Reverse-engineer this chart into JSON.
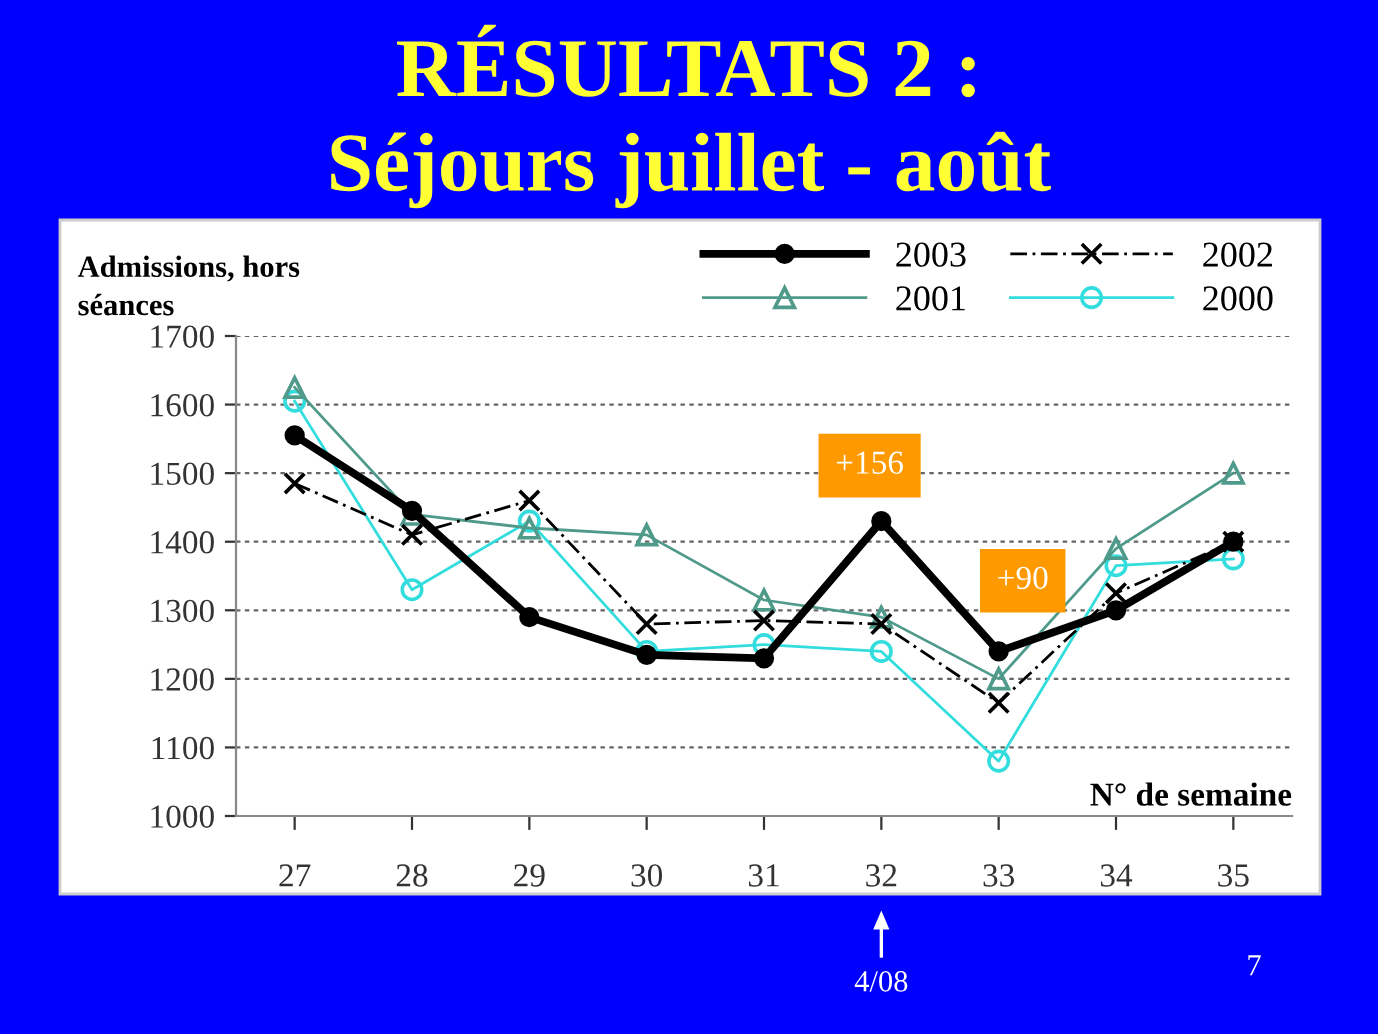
{
  "chart_data": {
    "type": "line",
    "title": "RÉSULTATS 2 :",
    "subtitle": "Séjours juillet - août",
    "xlabel": "N° de semaine",
    "ylabel": "Admissions, hors\nséances",
    "categories": [
      "27",
      "28",
      "29",
      "30",
      "31",
      "32",
      "33",
      "34",
      "35"
    ],
    "series": [
      {
        "name": "2003",
        "color": "#000000",
        "marker": "circle",
        "line_style": "solid",
        "values": [
          1555,
          1445,
          1290,
          1235,
          1230,
          1430,
          1240,
          1300,
          1400
        ]
      },
      {
        "name": "2002",
        "color": "#000000",
        "marker": "cross",
        "line_style": "dashed",
        "values": [
          1485,
          1410,
          1460,
          1280,
          1285,
          1280,
          1165,
          1325,
          1400
        ]
      },
      {
        "name": "2001",
        "color": "#4f9a8a",
        "marker": "triangle",
        "line_style": "solid",
        "values": [
          1625,
          1440,
          1420,
          1410,
          1315,
          1290,
          1200,
          1390,
          1500
        ]
      },
      {
        "name": "2000",
        "color": "#33dddd",
        "marker": "circle",
        "line_style": "solid",
        "values": [
          1605,
          1330,
          1430,
          1240,
          1250,
          1240,
          1080,
          1365,
          1375
        ]
      }
    ],
    "ylim": [
      1000,
      1700
    ],
    "yticks": [
      1000,
      1100,
      1200,
      1300,
      1400,
      1500,
      1600,
      1700
    ],
    "grid": "y",
    "legend": "top right",
    "annotations": [
      "+156",
      "+90",
      "4/08",
      "7"
    ]
  }
}
